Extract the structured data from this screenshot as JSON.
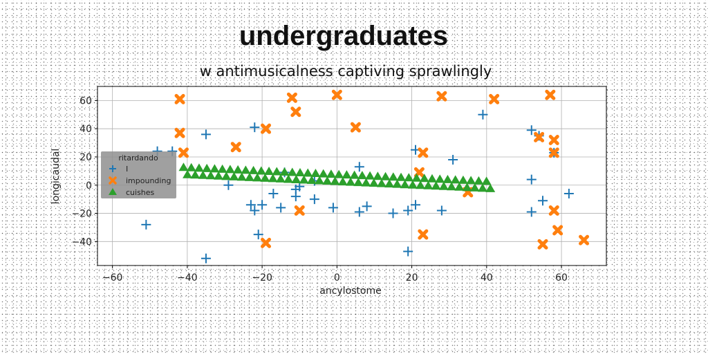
{
  "chart_data": {
    "type": "scatter",
    "title": "undergraduates",
    "subtitle": "w antimusicalness captiving sprawlingly",
    "xlabel": "ancylostome",
    "ylabel": "longicaudal",
    "xlim": [
      -64,
      72
    ],
    "ylim": [
      -57,
      70
    ],
    "x_ticks": [
      -60,
      -40,
      -20,
      0,
      20,
      40,
      60
    ],
    "y_ticks": [
      -40,
      -20,
      0,
      20,
      40,
      60
    ],
    "grid": true,
    "legend": {
      "title": "ritardando",
      "placement": "center-left",
      "entries": [
        "I",
        "impounding",
        "cuishes"
      ]
    },
    "series": [
      {
        "name": "I",
        "marker": "plus",
        "color": "#1f77b4",
        "points": [
          [
            -51,
            -28
          ],
          [
            -48,
            24
          ],
          [
            -44,
            24
          ],
          [
            -35,
            36
          ],
          [
            -35,
            -52
          ],
          [
            -29,
            0
          ],
          [
            -23,
            -14
          ],
          [
            -22,
            -18
          ],
          [
            -22,
            41
          ],
          [
            -21,
            -35
          ],
          [
            -20,
            -14
          ],
          [
            -17,
            -6
          ],
          [
            -15,
            -16
          ],
          [
            -14,
            9
          ],
          [
            -11,
            -3
          ],
          [
            -11,
            -8
          ],
          [
            -10,
            -1
          ],
          [
            -6,
            -10
          ],
          [
            -6,
            3
          ],
          [
            -1,
            -16
          ],
          [
            6,
            -19
          ],
          [
            6,
            13
          ],
          [
            8,
            -15
          ],
          [
            15,
            -20
          ],
          [
            19,
            -47
          ],
          [
            19,
            -18
          ],
          [
            21,
            -14
          ],
          [
            21,
            25
          ],
          [
            28,
            -18
          ],
          [
            31,
            18
          ],
          [
            39,
            50
          ],
          [
            52,
            4
          ],
          [
            52,
            -19
          ],
          [
            52,
            39
          ],
          [
            54,
            35
          ],
          [
            55,
            -11
          ],
          [
            58,
            23
          ],
          [
            62,
            -6
          ]
        ]
      },
      {
        "name": "impounding",
        "marker": "x",
        "color": "#ff7f0e",
        "points": [
          [
            -42,
            61
          ],
          [
            -42,
            37
          ],
          [
            -41,
            23
          ],
          [
            -27,
            27
          ],
          [
            -19,
            40
          ],
          [
            -19,
            -41
          ],
          [
            -12,
            62
          ],
          [
            -11,
            52
          ],
          [
            -10,
            -18
          ],
          [
            0,
            64
          ],
          [
            5,
            41
          ],
          [
            22,
            9
          ],
          [
            23,
            23
          ],
          [
            23,
            -35
          ],
          [
            28,
            63
          ],
          [
            35,
            -5
          ],
          [
            42,
            61
          ],
          [
            54,
            34
          ],
          [
            55,
            -42
          ],
          [
            57,
            64
          ],
          [
            58,
            32
          ],
          [
            58,
            23
          ],
          [
            58,
            -18
          ],
          [
            59,
            -32
          ],
          [
            66,
            -39
          ]
        ]
      },
      {
        "name": "cuishes",
        "marker": "triangle",
        "color": "#2ca02c",
        "trend": {
          "x_start": -41,
          "x_end": 41,
          "y_upper_start": 12,
          "y_upper_end": 2,
          "y_lower_start": 7,
          "y_lower_end": -3
        },
        "count": 80
      }
    ]
  }
}
